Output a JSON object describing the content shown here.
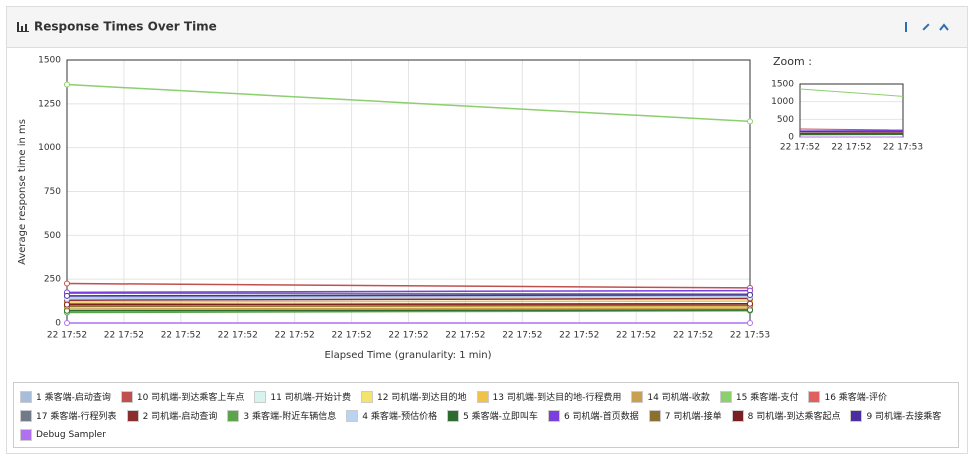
{
  "chart_data": [
    {
      "type": "line",
      "title": "Response Times Over Time",
      "ylabel": "Average response time in ms",
      "xlabel": "Elapsed Time (granularity: 1 min)",
      "x": [
        "22 17:52",
        "22 17:53"
      ],
      "xtick_labels": [
        "22 17:52",
        "22 17:52",
        "22 17:52",
        "22 17:52",
        "22 17:52",
        "22 17:52",
        "22 17:52",
        "22 17:52",
        "22 17:52",
        "22 17:52",
        "22 17:52",
        "22 17:52",
        "22 17:53"
      ],
      "ylim": [
        0,
        1500
      ],
      "yticks": [
        0,
        250,
        500,
        750,
        1000,
        1250,
        1500
      ],
      "grid": true,
      "series": [
        {
          "name": "1 乘客端-启动查询",
          "color": "#a6bddb",
          "values": [
            150,
            150
          ]
        },
        {
          "name": "10 司机端-到达乘客上车点",
          "color": "#c0504d",
          "values": [
            225,
            200
          ]
        },
        {
          "name": "11 司机端-开始计费",
          "color": "#d8f2ee",
          "values": [
            100,
            110
          ]
        },
        {
          "name": "12 司机端-到达目的地",
          "color": "#f5e46c",
          "values": [
            90,
            95
          ]
        },
        {
          "name": "13 司机端-到达目的地-行程费用",
          "color": "#f0c24a",
          "values": [
            120,
            125
          ]
        },
        {
          "name": "14 司机端-收款",
          "color": "#c8a050",
          "values": [
            80,
            85
          ]
        },
        {
          "name": "15 乘客端-支付",
          "color": "#8ccf6e",
          "values": [
            1360,
            1150
          ]
        },
        {
          "name": "16 乘客端-评价",
          "color": "#e06060",
          "values": [
            110,
            100
          ]
        },
        {
          "name": "17 乘客端-行程列表",
          "color": "#707a88",
          "values": [
            170,
            165
          ]
        },
        {
          "name": "2 司机端-启动查询",
          "color": "#8b2e2e",
          "values": [
            130,
            140
          ]
        },
        {
          "name": "3 乘客端-附近车辆信息",
          "color": "#5aa54a",
          "values": [
            60,
            70
          ]
        },
        {
          "name": "4 乘客端-预估价格",
          "color": "#b8d4f0",
          "values": [
            140,
            150
          ]
        },
        {
          "name": "5 乘客端-立即叫车",
          "color": "#2e6b2e",
          "values": [
            70,
            75
          ]
        },
        {
          "name": "6 司机端-首页数据",
          "color": "#7b3fe0",
          "values": [
            175,
            185
          ]
        },
        {
          "name": "7 司机端-接单",
          "color": "#8b7030",
          "values": [
            95,
            100
          ]
        },
        {
          "name": "8 司机端-到达乘客起点",
          "color": "#7a2020",
          "values": [
            105,
            110
          ]
        },
        {
          "name": "9 司机端-去接乘客",
          "color": "#4b2ea0",
          "values": [
            155,
            160
          ]
        },
        {
          "name": "Debug Sampler",
          "color": "#b070f0",
          "values": [
            0,
            0
          ]
        }
      ]
    },
    {
      "type": "zoom",
      "title": "Zoom :",
      "ylim": [
        0,
        1500
      ],
      "yticks": [
        0,
        500,
        1000,
        1500
      ],
      "xtick_labels": [
        "22 17:52",
        "22 17:52",
        "22 17:53"
      ]
    }
  ]
}
